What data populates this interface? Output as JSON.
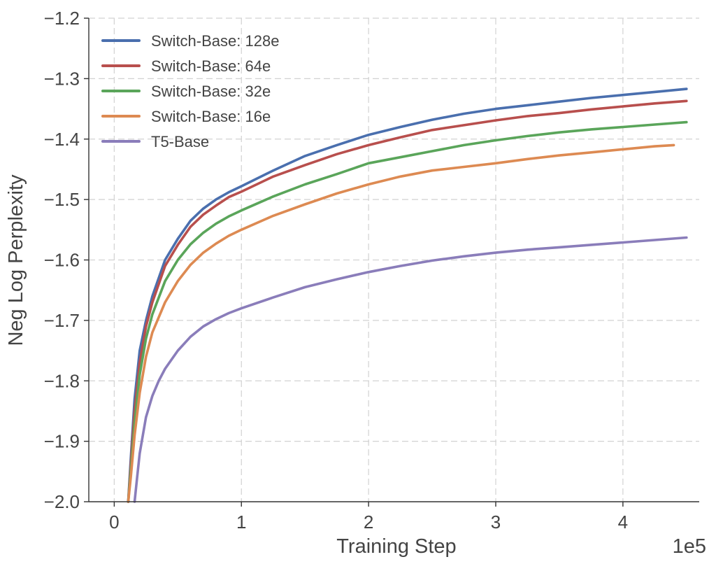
{
  "chart_data": {
    "type": "line",
    "title": "",
    "xlabel": "Training Step",
    "ylabel": "Neg Log Perplexity",
    "x_offset_text": "1e5",
    "xlim": [
      -0.2,
      4.6
    ],
    "ylim": [
      -2.0,
      -1.2
    ],
    "x_ticks": [
      0,
      1,
      2,
      3,
      4
    ],
    "x_tick_labels": [
      "0",
      "1",
      "2",
      "3",
      "4"
    ],
    "y_ticks": [
      -2.0,
      -1.9,
      -1.8,
      -1.7,
      -1.6,
      -1.5,
      -1.4,
      -1.3,
      -1.2
    ],
    "y_tick_labels": [
      "−2.0",
      "−1.9",
      "−1.8",
      "−1.7",
      "−1.6",
      "−1.5",
      "−1.4",
      "−1.3",
      "−1.2"
    ],
    "grid": true,
    "legend_position": "top-left",
    "series": [
      {
        "name": "Switch-Base: 128e",
        "color": "#4a6fae",
        "x": [
          0.11,
          0.13,
          0.16,
          0.2,
          0.25,
          0.3,
          0.4,
          0.5,
          0.6,
          0.7,
          0.8,
          0.9,
          1.0,
          1.25,
          1.5,
          1.75,
          2.0,
          2.25,
          2.5,
          2.75,
          3.0,
          3.25,
          3.5,
          3.75,
          4.0,
          4.25,
          4.5
        ],
        "y": [
          -2.0,
          -1.93,
          -1.83,
          -1.75,
          -1.7,
          -1.66,
          -1.6,
          -1.565,
          -1.535,
          -1.515,
          -1.5,
          -1.488,
          -1.478,
          -1.452,
          -1.428,
          -1.41,
          -1.393,
          -1.38,
          -1.368,
          -1.358,
          -1.35,
          -1.344,
          -1.338,
          -1.332,
          -1.327,
          -1.322,
          -1.317
        ]
      },
      {
        "name": "Switch-Base: 64e",
        "color": "#b84f4d",
        "x": [
          0.11,
          0.13,
          0.16,
          0.2,
          0.25,
          0.3,
          0.4,
          0.5,
          0.6,
          0.7,
          0.8,
          0.9,
          1.0,
          1.25,
          1.5,
          1.75,
          2.0,
          2.25,
          2.5,
          2.75,
          3.0,
          3.25,
          3.5,
          3.75,
          4.0,
          4.25,
          4.5
        ],
        "y": [
          -2.0,
          -1.94,
          -1.85,
          -1.77,
          -1.71,
          -1.67,
          -1.61,
          -1.575,
          -1.545,
          -1.525,
          -1.51,
          -1.496,
          -1.487,
          -1.462,
          -1.443,
          -1.425,
          -1.41,
          -1.397,
          -1.385,
          -1.377,
          -1.369,
          -1.362,
          -1.357,
          -1.351,
          -1.346,
          -1.341,
          -1.337
        ]
      },
      {
        "name": "Switch-Base: 32e",
        "color": "#5aa55a",
        "x": [
          0.11,
          0.13,
          0.16,
          0.2,
          0.25,
          0.3,
          0.4,
          0.5,
          0.6,
          0.7,
          0.8,
          0.9,
          1.0,
          1.25,
          1.5,
          1.75,
          2.0,
          2.25,
          2.5,
          2.75,
          3.0,
          3.25,
          3.5,
          3.75,
          4.0,
          4.25,
          4.5
        ],
        "y": [
          -2.0,
          -1.95,
          -1.87,
          -1.79,
          -1.73,
          -1.69,
          -1.635,
          -1.6,
          -1.574,
          -1.555,
          -1.54,
          -1.528,
          -1.518,
          -1.495,
          -1.475,
          -1.458,
          -1.44,
          -1.43,
          -1.42,
          -1.41,
          -1.402,
          -1.395,
          -1.389,
          -1.384,
          -1.38,
          -1.376,
          -1.372
        ]
      },
      {
        "name": "Switch-Base: 16e",
        "color": "#dd8a52",
        "x": [
          0.11,
          0.13,
          0.16,
          0.2,
          0.25,
          0.3,
          0.4,
          0.5,
          0.6,
          0.7,
          0.8,
          0.9,
          1.0,
          1.25,
          1.5,
          1.75,
          2.0,
          2.25,
          2.5,
          2.75,
          3.0,
          3.25,
          3.5,
          3.75,
          4.0,
          4.25,
          4.4
        ],
        "y": [
          -2.0,
          -1.96,
          -1.89,
          -1.82,
          -1.76,
          -1.72,
          -1.67,
          -1.635,
          -1.608,
          -1.588,
          -1.573,
          -1.56,
          -1.55,
          -1.527,
          -1.508,
          -1.49,
          -1.475,
          -1.462,
          -1.452,
          -1.446,
          -1.44,
          -1.433,
          -1.427,
          -1.422,
          -1.417,
          -1.412,
          -1.41
        ]
      },
      {
        "name": "T5-Base",
        "color": "#8a7dba",
        "x": [
          0.16,
          0.18,
          0.2,
          0.25,
          0.3,
          0.35,
          0.4,
          0.5,
          0.6,
          0.7,
          0.8,
          0.9,
          1.0,
          1.25,
          1.5,
          1.75,
          2.0,
          2.25,
          2.5,
          2.75,
          3.0,
          3.25,
          3.5,
          3.75,
          4.0,
          4.25,
          4.5
        ],
        "y": [
          -2.0,
          -1.96,
          -1.92,
          -1.86,
          -1.825,
          -1.8,
          -1.78,
          -1.75,
          -1.727,
          -1.71,
          -1.698,
          -1.688,
          -1.68,
          -1.662,
          -1.645,
          -1.632,
          -1.62,
          -1.61,
          -1.601,
          -1.594,
          -1.588,
          -1.583,
          -1.579,
          -1.575,
          -1.571,
          -1.567,
          -1.563
        ]
      }
    ]
  }
}
